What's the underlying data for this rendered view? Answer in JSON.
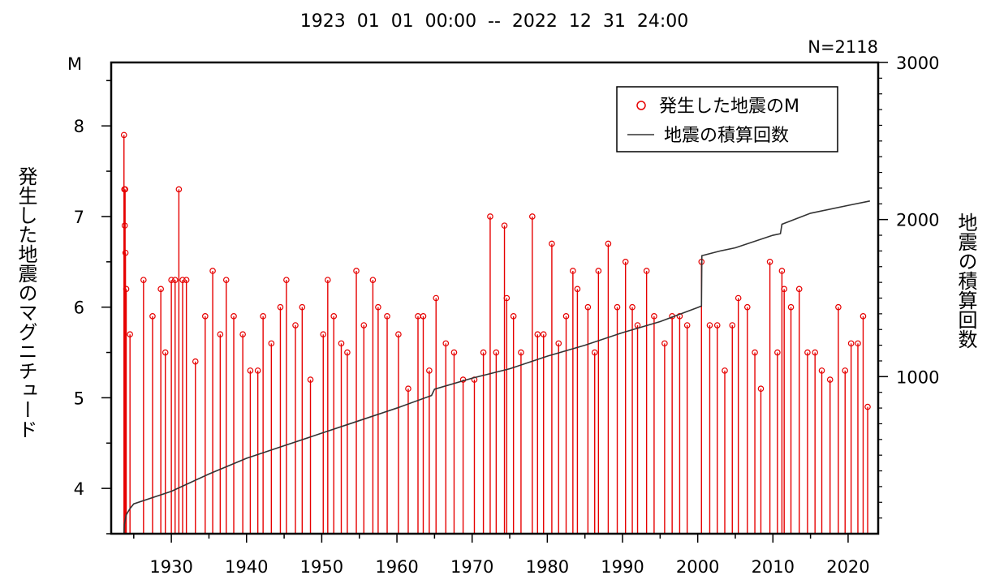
{
  "chart_data": {
    "type": "line",
    "title": "1923  01  01  00:00  --  2022  12  31  24:00",
    "count_label": "N=2118",
    "ylabel_left": "発生した地震のマグニチュード",
    "ylabel_left_unit": "M",
    "ylabel_right": "地震の積算回数",
    "xlim": [
      1922,
      2024
    ],
    "ylim_left": [
      3.5,
      8.7
    ],
    "ylim_right": [
      0,
      3000
    ],
    "x_ticks": [
      1930,
      1940,
      1950,
      1960,
      1970,
      1980,
      1990,
      2000,
      2010,
      2020
    ],
    "y_ticks_left": [
      4,
      5,
      6,
      7,
      8
    ],
    "y_ticks_right": [
      1000,
      2000,
      3000
    ],
    "grid": false,
    "legend_position": "top-right",
    "legend": [
      {
        "label": "発生した地震のM",
        "marker": "circle",
        "color": "#e60000"
      },
      {
        "label": "地震の積算回数",
        "marker": "line",
        "color": "#333333"
      }
    ],
    "colors": {
      "magnitude": "#e60000",
      "cumulative": "#333333"
    },
    "series": [
      {
        "name": "発生した地震のM",
        "kind": "stem",
        "axis": "left",
        "points": [
          [
            1923.7,
            7.9
          ],
          [
            1923.75,
            7.3
          ],
          [
            1923.85,
            7.3
          ],
          [
            1923.8,
            6.9
          ],
          [
            1923.9,
            6.6
          ],
          [
            1924.0,
            6.2
          ],
          [
            1924.5,
            5.7
          ],
          [
            1926.3,
            6.3
          ],
          [
            1927.5,
            5.9
          ],
          [
            1928.6,
            6.2
          ],
          [
            1929.2,
            5.5
          ],
          [
            1930.0,
            6.3
          ],
          [
            1930.5,
            6.3
          ],
          [
            1931.0,
            7.3
          ],
          [
            1931.5,
            6.3
          ],
          [
            1932.0,
            6.3
          ],
          [
            1933.2,
            5.4
          ],
          [
            1934.5,
            5.9
          ],
          [
            1935.5,
            6.4
          ],
          [
            1936.5,
            5.7
          ],
          [
            1937.3,
            6.3
          ],
          [
            1938.3,
            5.9
          ],
          [
            1939.5,
            5.7
          ],
          [
            1940.5,
            5.3
          ],
          [
            1941.5,
            5.3
          ],
          [
            1942.2,
            5.9
          ],
          [
            1943.3,
            5.6
          ],
          [
            1944.5,
            6.0
          ],
          [
            1945.3,
            6.3
          ],
          [
            1946.5,
            5.8
          ],
          [
            1947.4,
            6.0
          ],
          [
            1948.5,
            5.2
          ],
          [
            1950.2,
            5.7
          ],
          [
            1950.8,
            6.3
          ],
          [
            1951.6,
            5.9
          ],
          [
            1952.6,
            5.6
          ],
          [
            1953.4,
            5.5
          ],
          [
            1954.6,
            6.4
          ],
          [
            1955.6,
            5.8
          ],
          [
            1956.8,
            6.3
          ],
          [
            1957.5,
            6.0
          ],
          [
            1958.7,
            5.9
          ],
          [
            1960.2,
            5.7
          ],
          [
            1961.5,
            5.1
          ],
          [
            1962.8,
            5.9
          ],
          [
            1963.5,
            5.9
          ],
          [
            1964.3,
            5.3
          ],
          [
            1965.2,
            6.1
          ],
          [
            1966.5,
            5.6
          ],
          [
            1967.6,
            5.5
          ],
          [
            1968.8,
            5.2
          ],
          [
            1970.3,
            5.2
          ],
          [
            1971.5,
            5.5
          ],
          [
            1972.4,
            7.0
          ],
          [
            1973.2,
            5.5
          ],
          [
            1974.3,
            6.9
          ],
          [
            1974.6,
            6.1
          ],
          [
            1975.5,
            5.9
          ],
          [
            1976.5,
            5.5
          ],
          [
            1978.0,
            7.0
          ],
          [
            1978.7,
            5.7
          ],
          [
            1979.5,
            5.7
          ],
          [
            1980.6,
            6.7
          ],
          [
            1981.5,
            5.6
          ],
          [
            1982.5,
            5.9
          ],
          [
            1983.4,
            6.4
          ],
          [
            1984.0,
            6.2
          ],
          [
            1985.4,
            6.0
          ],
          [
            1986.3,
            5.5
          ],
          [
            1986.8,
            6.4
          ],
          [
            1988.1,
            6.7
          ],
          [
            1989.3,
            6.0
          ],
          [
            1990.4,
            6.5
          ],
          [
            1991.3,
            6.0
          ],
          [
            1992.0,
            5.8
          ],
          [
            1993.2,
            6.4
          ],
          [
            1994.2,
            5.9
          ],
          [
            1995.6,
            5.6
          ],
          [
            1996.6,
            5.9
          ],
          [
            1997.6,
            5.9
          ],
          [
            1998.6,
            5.8
          ],
          [
            2000.5,
            6.5
          ],
          [
            2001.6,
            5.8
          ],
          [
            2002.6,
            5.8
          ],
          [
            2003.6,
            5.3
          ],
          [
            2004.6,
            5.8
          ],
          [
            2005.4,
            6.1
          ],
          [
            2006.6,
            6.0
          ],
          [
            2007.6,
            5.5
          ],
          [
            2008.4,
            5.1
          ],
          [
            2009.6,
            6.5
          ],
          [
            2010.6,
            5.5
          ],
          [
            2011.2,
            6.4
          ],
          [
            2011.5,
            6.2
          ],
          [
            2012.4,
            6.0
          ],
          [
            2013.5,
            6.2
          ],
          [
            2014.6,
            5.5
          ],
          [
            2015.6,
            5.5
          ],
          [
            2016.5,
            5.3
          ],
          [
            2017.6,
            5.2
          ],
          [
            2018.7,
            6.0
          ],
          [
            2019.6,
            5.3
          ],
          [
            2020.4,
            5.6
          ],
          [
            2021.3,
            5.6
          ],
          [
            2022.0,
            5.9
          ],
          [
            2022.6,
            4.9
          ]
        ]
      },
      {
        "name": "地震の積算回数",
        "kind": "line",
        "axis": "right",
        "x": [
          1923.7,
          1923.75,
          1924.0,
          1924.5,
          1925,
          1930,
          1935,
          1940,
          1945,
          1950,
          1955,
          1960,
          1964.6,
          1965,
          1970,
          1975,
          1980,
          1985,
          1990,
          1995,
          2000,
          2000.5,
          2000.55,
          2003,
          2005,
          2010,
          2011,
          2011.2,
          2015,
          2020,
          2022.9
        ],
        "y": [
          0,
          60,
          120,
          160,
          190,
          270,
          380,
          480,
          560,
          640,
          720,
          800,
          880,
          920,
          990,
          1050,
          1130,
          1200,
          1280,
          1350,
          1440,
          1450,
          1770,
          1800,
          1820,
          1900,
          1910,
          1970,
          2040,
          2090,
          2118
        ]
      }
    ]
  }
}
